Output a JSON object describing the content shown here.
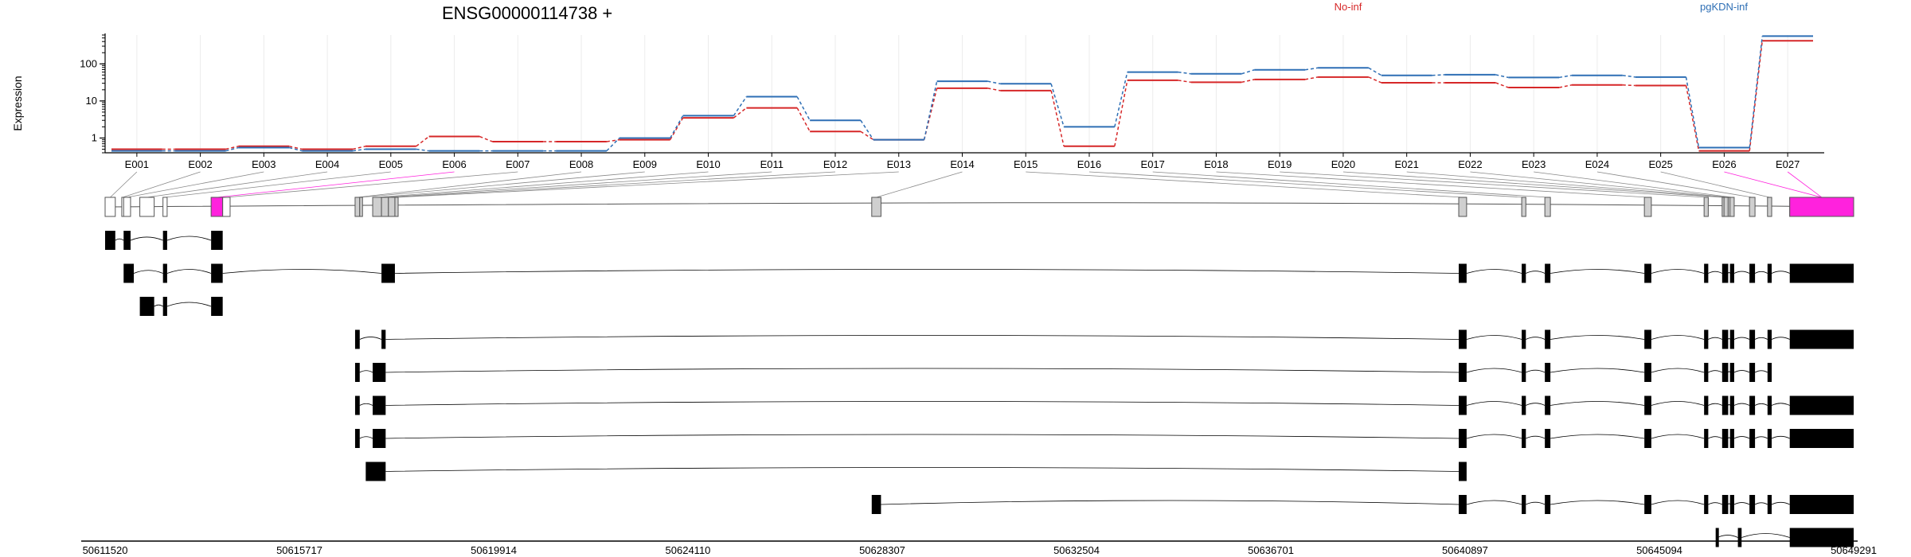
{
  "colors": {
    "no_inf": "#d62728",
    "pgkdn_inf": "#2e6fb5",
    "highlight": "#ff22dd",
    "exon_fill": "#cfcfcf",
    "transcript": "#000000"
  },
  "chart_data": {
    "type": "line",
    "title": "ENSG00000114738 +",
    "ylabel": "Expression",
    "yscale": "log",
    "yticks": [
      1,
      10,
      100
    ],
    "ylim": [
      0.4,
      600
    ],
    "categories": [
      "E001",
      "E002",
      "E003",
      "E004",
      "E005",
      "E006",
      "E007",
      "E008",
      "E009",
      "E010",
      "E011",
      "E012",
      "E013",
      "E014",
      "E015",
      "E016",
      "E017",
      "E018",
      "E019",
      "E020",
      "E021",
      "E022",
      "E023",
      "E024",
      "E025",
      "E026",
      "E027"
    ],
    "series": [
      {
        "name": "No-inf",
        "color": "#d62728",
        "values": [
          0.5,
          0.5,
          0.6,
          0.5,
          0.6,
          1.1,
          0.8,
          0.8,
          0.9,
          3.5,
          6.5,
          1.5,
          0.9,
          22,
          19,
          0.6,
          36,
          32,
          38,
          44,
          31,
          31,
          23,
          27,
          26,
          0.45,
          420
        ]
      },
      {
        "name": "pgKDN-inf",
        "color": "#2e6fb5",
        "values": [
          0.45,
          0.45,
          0.55,
          0.45,
          0.5,
          0.45,
          0.45,
          0.45,
          1.0,
          4.0,
          13,
          3.0,
          0.9,
          34,
          29,
          2.0,
          60,
          54,
          69,
          78,
          49,
          51,
          43,
          49,
          44,
          0.55,
          560
        ]
      }
    ],
    "genomic_axis": {
      "start": 50611520,
      "end": 50649291,
      "ticks": [
        "50611520",
        "50615717",
        "50619914",
        "50624110",
        "50628307",
        "50632504",
        "50636701",
        "50640897",
        "50645094",
        "50649291"
      ]
    },
    "gene_exons": [
      {
        "id": "E001",
        "start": 50611520,
        "end": 50611740,
        "style": "white"
      },
      {
        "id": "E002",
        "start": 50611880,
        "end": 50611920,
        "style": "white"
      },
      {
        "id": "E003",
        "start": 50611920,
        "end": 50612070,
        "style": "white"
      },
      {
        "id": "E004",
        "start": 50612270,
        "end": 50612580,
        "style": "white"
      },
      {
        "id": "E005",
        "start": 50612770,
        "end": 50612860,
        "style": "white"
      },
      {
        "id": "E006",
        "start": 50613810,
        "end": 50614060,
        "style": "highlight"
      },
      {
        "id": "E007",
        "start": 50614060,
        "end": 50614220,
        "style": "white"
      },
      {
        "id": "E008",
        "start": 50616920,
        "end": 50617020,
        "style": "gray"
      },
      {
        "id": "E009",
        "start": 50617020,
        "end": 50617080,
        "style": "gray"
      },
      {
        "id": "E010",
        "start": 50617300,
        "end": 50617490,
        "style": "gray"
      },
      {
        "id": "E011",
        "start": 50617490,
        "end": 50617640,
        "style": "gray"
      },
      {
        "id": "E012",
        "start": 50617640,
        "end": 50617780,
        "style": "gray"
      },
      {
        "id": "E013",
        "start": 50617780,
        "end": 50617850,
        "style": "gray"
      },
      {
        "id": "E014",
        "start": 50628080,
        "end": 50628280,
        "style": "gray"
      },
      {
        "id": "E015",
        "start": 50640760,
        "end": 50640930,
        "style": "gray"
      },
      {
        "id": "E016",
        "start": 50642120,
        "end": 50642210,
        "style": "gray"
      },
      {
        "id": "E017",
        "start": 50642620,
        "end": 50642740,
        "style": "gray"
      },
      {
        "id": "E018",
        "start": 50644770,
        "end": 50644920,
        "style": "gray"
      },
      {
        "id": "E019",
        "start": 50646060,
        "end": 50646150,
        "style": "gray"
      },
      {
        "id": "E020",
        "start": 50646450,
        "end": 50646490,
        "style": "gray"
      },
      {
        "id": "E021",
        "start": 50646490,
        "end": 50646580,
        "style": "gray"
      },
      {
        "id": "E022",
        "start": 50646580,
        "end": 50646610,
        "style": "gray"
      },
      {
        "id": "E023",
        "start": 50646620,
        "end": 50646710,
        "style": "gray"
      },
      {
        "id": "E024",
        "start": 50647040,
        "end": 50647160,
        "style": "gray"
      },
      {
        "id": "E025",
        "start": 50647430,
        "end": 50647520,
        "style": "gray"
      },
      {
        "id": "E026",
        "start": 50647910,
        "end": 50649291,
        "style": "highlight"
      },
      {
        "id": "E027",
        "start": 50647910,
        "end": 50649291,
        "style": "highlight"
      }
    ],
    "transcripts": [
      [
        [
          50611520,
          50611740
        ],
        [
          50611920,
          50612070
        ],
        [
          50612770,
          50612860
        ],
        [
          50613810,
          50614060
        ]
      ],
      [
        [
          50611920,
          50612140
        ],
        [
          50612770,
          50612860
        ],
        [
          50613810,
          50614060
        ],
        [
          50617490,
          50617780
        ],
        [
          50640760,
          50640930
        ],
        [
          50642120,
          50642210
        ],
        [
          50642620,
          50642740
        ],
        [
          50644770,
          50644920
        ],
        [
          50646060,
          50646150
        ],
        [
          50646450,
          50646580
        ],
        [
          50646620,
          50646710
        ],
        [
          50647040,
          50647160
        ],
        [
          50647430,
          50647520
        ],
        [
          50647910,
          50649291
        ]
      ],
      [
        [
          50612270,
          50612580
        ],
        [
          50612770,
          50612860
        ],
        [
          50613810,
          50614060
        ]
      ],
      [
        [
          50616920,
          50617020
        ],
        [
          50617490,
          50617580
        ],
        [
          50640760,
          50640930
        ],
        [
          50642120,
          50642210
        ],
        [
          50642620,
          50642740
        ],
        [
          50644770,
          50644920
        ],
        [
          50646060,
          50646150
        ],
        [
          50646450,
          50646580
        ],
        [
          50646620,
          50646710
        ],
        [
          50647040,
          50647160
        ],
        [
          50647430,
          50647520
        ],
        [
          50647910,
          50649291
        ]
      ],
      [
        [
          50616920,
          50617020
        ],
        [
          50617300,
          50617580
        ],
        [
          50640760,
          50640930
        ],
        [
          50642120,
          50642210
        ],
        [
          50642620,
          50642740
        ],
        [
          50644770,
          50644920
        ],
        [
          50646060,
          50646150
        ],
        [
          50646450,
          50646580
        ],
        [
          50646620,
          50646710
        ],
        [
          50647040,
          50647160
        ],
        [
          50647430,
          50647520
        ]
      ],
      [
        [
          50616920,
          50617020
        ],
        [
          50617300,
          50617580
        ],
        [
          50640760,
          50640930
        ],
        [
          50642120,
          50642210
        ],
        [
          50642620,
          50642740
        ],
        [
          50644770,
          50644920
        ],
        [
          50646060,
          50646150
        ],
        [
          50646450,
          50646580
        ],
        [
          50646620,
          50646710
        ],
        [
          50647040,
          50647160
        ],
        [
          50647430,
          50647520
        ],
        [
          50647910,
          50649291
        ]
      ],
      [
        [
          50616920,
          50617020
        ],
        [
          50617300,
          50617580
        ],
        [
          50640760,
          50640930
        ],
        [
          50642120,
          50642210
        ],
        [
          50642620,
          50642740
        ],
        [
          50644770,
          50644920
        ],
        [
          50646060,
          50646150
        ],
        [
          50646450,
          50646580
        ],
        [
          50646620,
          50646710
        ],
        [
          50647040,
          50647160
        ],
        [
          50647430,
          50647520
        ],
        [
          50647910,
          50649291
        ]
      ],
      [
        [
          50617150,
          50617580
        ],
        [
          50640760,
          50640930
        ]
      ],
      [
        [
          50628080,
          50628280
        ],
        [
          50640760,
          50640930
        ],
        [
          50642120,
          50642210
        ],
        [
          50642620,
          50642740
        ],
        [
          50644770,
          50644920
        ],
        [
          50646060,
          50646150
        ],
        [
          50646450,
          50646580
        ],
        [
          50646620,
          50646710
        ],
        [
          50647040,
          50647160
        ],
        [
          50647430,
          50647520
        ],
        [
          50647910,
          50649291
        ]
      ],
      [
        [
          50646310,
          50646350
        ],
        [
          50646790,
          50646870
        ],
        [
          50647910,
          50649291
        ]
      ]
    ]
  }
}
